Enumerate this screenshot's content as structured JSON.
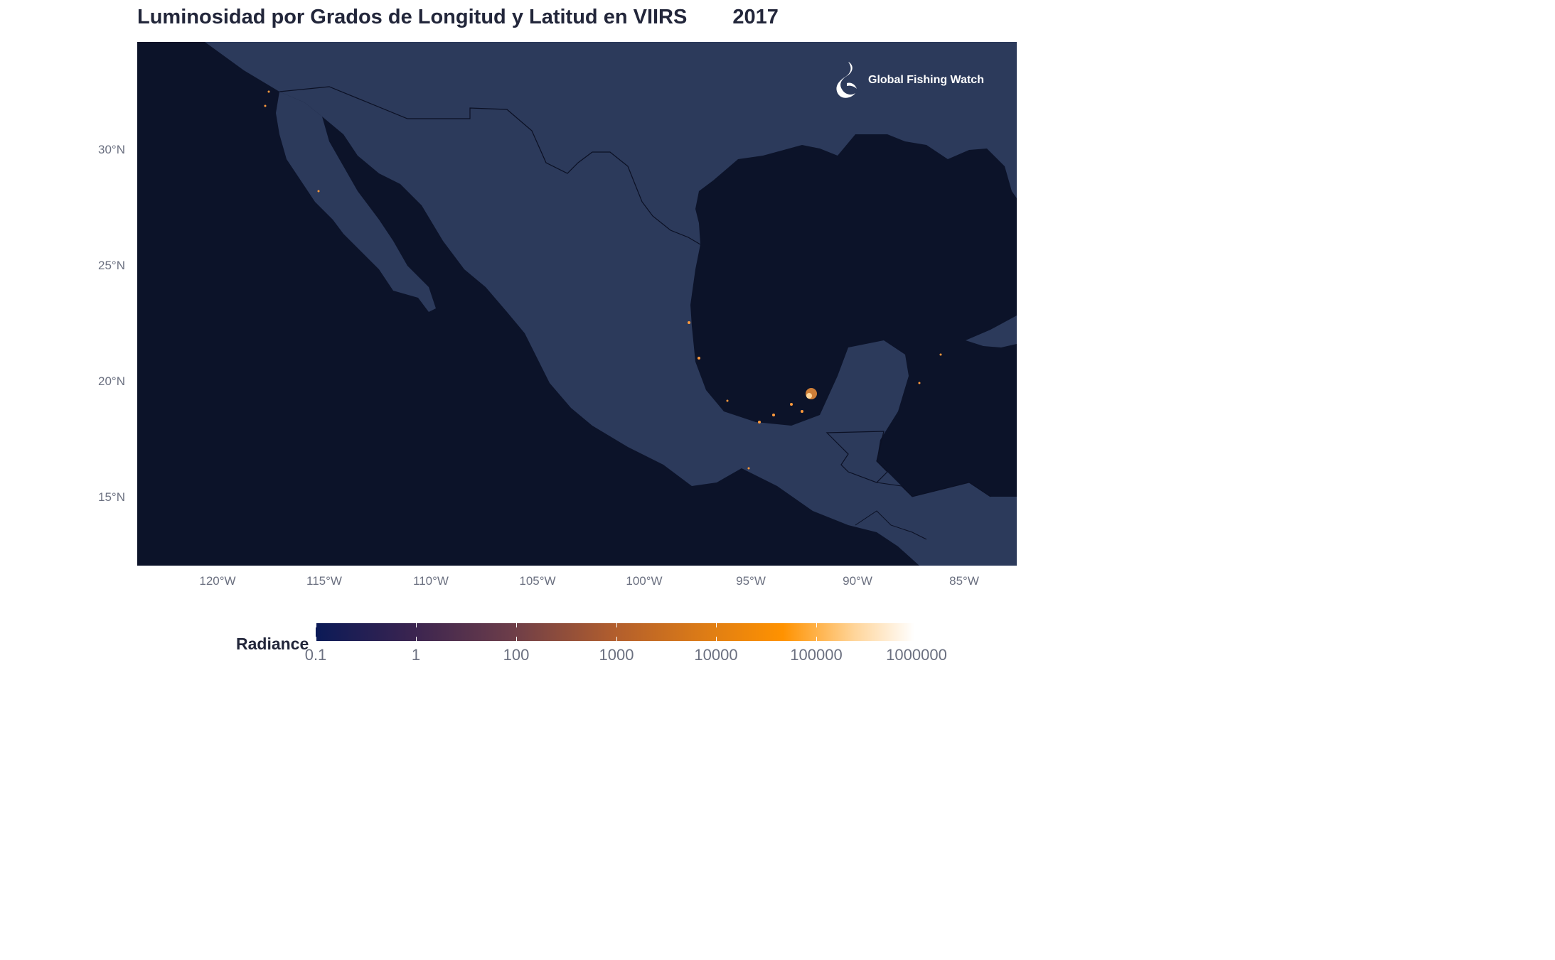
{
  "title": {
    "text": "Luminosidad por Grados de Longitud y Latitud en VIIRS",
    "year": "2017"
  },
  "map": {
    "logo_text": "Global Fishing Watch",
    "colors": {
      "ocean": "#0c1329",
      "land": "#2c3a5b",
      "border": "#0b1024",
      "hotspot": "#ff9a3c"
    },
    "y_axis_labels": [
      "30°N",
      "25°N",
      "20°N",
      "15°N"
    ],
    "x_axis_labels": [
      "120°W",
      "115°W",
      "110°W",
      "105°W",
      "100°W",
      "95°W",
      "90°W",
      "85°W"
    ]
  },
  "legend": {
    "title": "Radiance",
    "labels": [
      "0.1",
      "1",
      "100",
      "1000",
      "10000",
      "100000",
      "1000000"
    ]
  }
}
